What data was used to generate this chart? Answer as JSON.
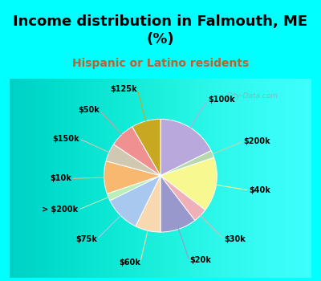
{
  "title": "Income distribution in Falmouth, ME\n(%)",
  "subtitle": "Hispanic or Latino residents",
  "bg_cyan": "#00FFFF",
  "bg_chart_color1": "#d8f5ee",
  "bg_chart_color2": "#ffffff",
  "labels": [
    "$100k",
    "$200k",
    "$40k",
    "$30k",
    "$20k",
    "$60k",
    "$75k",
    "> $200k",
    "$10k",
    "$150k",
    "$50k",
    "$125k"
  ],
  "sizes": [
    17,
    2,
    15,
    4,
    10,
    7,
    10,
    2,
    9,
    5,
    7,
    8
  ],
  "colors": [
    "#b8a8dc",
    "#b8d8b0",
    "#f8f890",
    "#f0b0b8",
    "#9898cc",
    "#f8d8b0",
    "#a8c8f0",
    "#b8f0b8",
    "#f8b870",
    "#d0c8b0",
    "#f09090",
    "#c8a820"
  ],
  "watermark": "City-Data.com",
  "title_fontsize": 13,
  "subtitle_fontsize": 10,
  "subtitle_color": "#c06030",
  "label_fontsize": 7
}
